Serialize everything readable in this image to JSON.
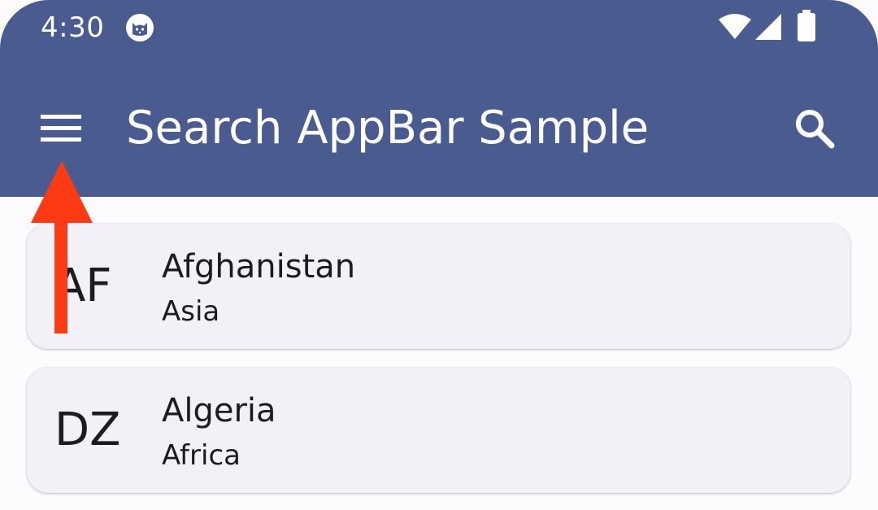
{
  "status_bar": {
    "time": "4:30",
    "icons": [
      "cat-notification-icon",
      "wifi-icon",
      "cellular-signal-icon",
      "battery-icon"
    ]
  },
  "app_bar": {
    "title": "Search AppBar Sample",
    "menu_icon": "hamburger-menu-icon",
    "search_icon": "search-icon",
    "background_color": "#4a5b8f"
  },
  "countries": [
    {
      "code": "AF",
      "name": "Afghanistan",
      "region": "Asia"
    },
    {
      "code": "DZ",
      "name": "Algeria",
      "region": "Africa"
    }
  ],
  "annotation": {
    "type": "arrow-up",
    "color": "#fc3a14",
    "target": "menu-button"
  }
}
